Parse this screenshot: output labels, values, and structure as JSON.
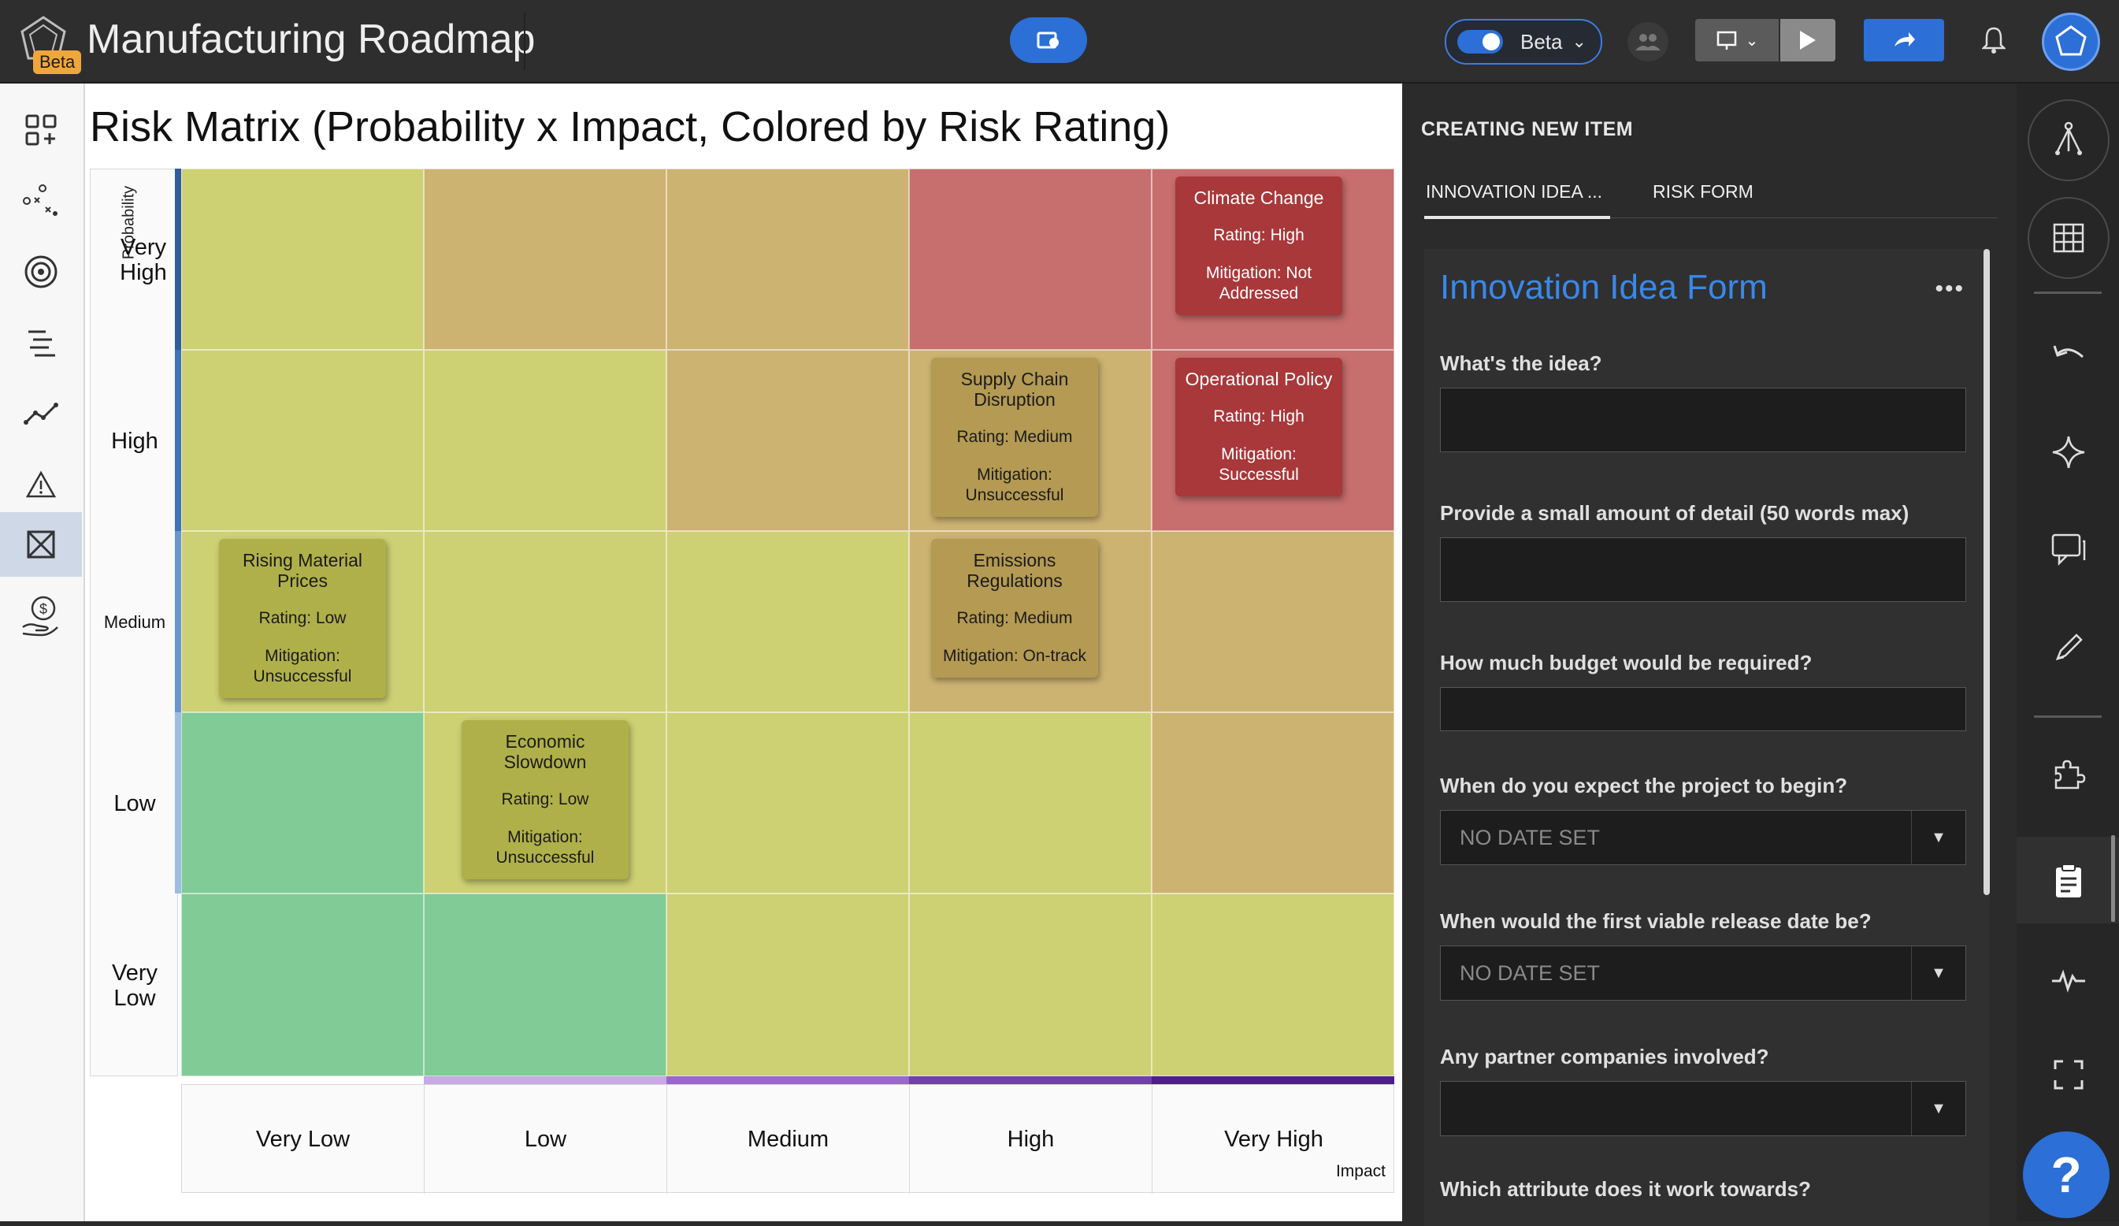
{
  "header": {
    "app_title": "Manufacturing Roadmap",
    "beta_badge": "Beta",
    "beta_toggle_label": "Beta"
  },
  "matrix": {
    "title": "Risk Matrix (Probability x Impact, Colored by Risk Rating)",
    "y_axis_label": "Probability",
    "x_axis_label": "Impact",
    "y_labels": [
      "Very High",
      "High",
      "Medium",
      "Low",
      "Very Low"
    ],
    "x_labels": [
      "Very Low",
      "Low",
      "Medium",
      "High",
      "Very High"
    ],
    "cell_colors": [
      [
        "#ced074",
        "#cdb372",
        "#cdb372",
        "#c76e6e",
        "#c76e6e"
      ],
      [
        "#ced074",
        "#ced074",
        "#cdb372",
        "#cdb372",
        "#c76e6e"
      ],
      [
        "#ced074",
        "#ced074",
        "#ced074",
        "#cdb372",
        "#cdb372"
      ],
      [
        "#80cb96",
        "#ced074",
        "#ced074",
        "#ced074",
        "#cdb372"
      ],
      [
        "#80cb96",
        "#80cb96",
        "#ced074",
        "#ced074",
        "#ced074"
      ]
    ],
    "cards": [
      {
        "title": "Climate Change",
        "rating": "Rating: High",
        "mitigation": "Mitigation: Not Addressed",
        "color": "#a8383a",
        "text_color": "#ffffff"
      },
      {
        "title": "Supply Chain Disruption",
        "rating": "Rating: Medium",
        "mitigation": "Mitigation: Unsuccessful",
        "color": "#b49a52",
        "text_color": "#1b1b1b"
      },
      {
        "title": "Operational Policy",
        "rating": "Rating: High",
        "mitigation": "Mitigation: Successful",
        "color": "#a8383a",
        "text_color": "#ffffff"
      },
      {
        "title": "Rising Material Prices",
        "rating": "Rating: Low",
        "mitigation": "Mitigation: Unsuccessful",
        "color": "#b0b04a",
        "text_color": "#1b1b1b"
      },
      {
        "title": "Emissions Regulations",
        "rating": "Rating: Medium",
        "mitigation": "Mitigation: On-track",
        "color": "#b49a52",
        "text_color": "#1b1b1b"
      },
      {
        "title": "Economic Slowdown",
        "rating": "Rating: Low",
        "mitigation": "Mitigation: Unsuccessful",
        "color": "#b0b04a",
        "text_color": "#1b1b1b"
      }
    ]
  },
  "panel": {
    "heading": "CREATING NEW ITEM",
    "tabs": [
      "INNOVATION IDEA ...",
      "RISK FORM"
    ],
    "form_title": "Innovation Idea Form",
    "more": "•••",
    "fields": [
      {
        "label": "What's the idea?",
        "value": ""
      },
      {
        "label": "Provide a small amount of detail (50 words max)",
        "value": ""
      },
      {
        "label": "How much budget would be required?",
        "value": ""
      },
      {
        "label": "When do you expect the project to begin?",
        "value": "NO DATE SET"
      },
      {
        "label": "When would the first viable release date be?",
        "value": "NO DATE SET"
      },
      {
        "label": "Any partner companies involved?",
        "value": ""
      },
      {
        "label": "Which attribute does it work towards?",
        "value": ""
      }
    ]
  },
  "help_label": "?"
}
